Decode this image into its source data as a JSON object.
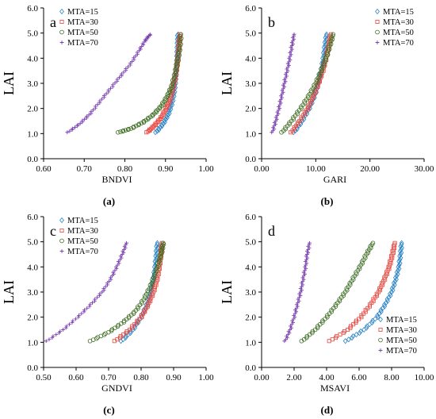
{
  "series_names": [
    "MTA=15",
    "MTA=30",
    "MTA=50",
    "MTA=70"
  ],
  "colors": {
    "MTA=15": "#2e86c8",
    "MTA=30": "#e8453c",
    "MTA=50": "#3a6b1f",
    "MTA=70": "#7a3fb0"
  },
  "markers": {
    "MTA=15": "diamond-open",
    "MTA=30": "square-open",
    "MTA=50": "circle-open",
    "MTA=70": "plus"
  },
  "chart_data": [
    {
      "type": "scatter",
      "panel_letter": "a",
      "caption": "(a)",
      "xlabel": "BNDVI",
      "ylabel": "LAI",
      "xlim": [
        0.6,
        1.0
      ],
      "ylim": [
        0,
        6
      ],
      "xticks": [
        "0.60",
        "0.70",
        "0.80",
        "0.90",
        "1.00"
      ],
      "yticks": [
        "0.0",
        "1.0",
        "2.0",
        "3.0",
        "4.0",
        "5.0",
        "6.0"
      ],
      "legend": "top-left",
      "series": [
        {
          "name": "MTA=15",
          "points": [
            [
              0.877,
              1.05
            ],
            [
              0.895,
              1.4
            ],
            [
              0.908,
              1.8
            ],
            [
              0.916,
              2.2
            ],
            [
              0.921,
              2.6
            ],
            [
              0.924,
              3.0
            ],
            [
              0.926,
              3.4
            ],
            [
              0.928,
              3.8
            ],
            [
              0.929,
              4.2
            ],
            [
              0.93,
              4.6
            ],
            [
              0.931,
              4.95
            ]
          ]
        },
        {
          "name": "MTA=30",
          "points": [
            [
              0.855,
              1.05
            ],
            [
              0.872,
              1.3
            ],
            [
              0.888,
              1.6
            ],
            [
              0.902,
              2.0
            ],
            [
              0.912,
              2.4
            ],
            [
              0.92,
              2.9
            ],
            [
              0.926,
              3.4
            ],
            [
              0.93,
              3.9
            ],
            [
              0.933,
              4.4
            ],
            [
              0.935,
              4.95
            ]
          ]
        },
        {
          "name": "MTA=50",
          "points": [
            [
              0.785,
              1.05
            ],
            [
              0.815,
              1.2
            ],
            [
              0.845,
              1.45
            ],
            [
              0.87,
              1.75
            ],
            [
              0.89,
              2.1
            ],
            [
              0.905,
              2.5
            ],
            [
              0.916,
              2.9
            ],
            [
              0.924,
              3.4
            ],
            [
              0.93,
              3.9
            ],
            [
              0.935,
              4.4
            ],
            [
              0.938,
              4.95
            ]
          ]
        },
        {
          "name": "MTA=70",
          "points": [
            [
              0.66,
              1.05
            ],
            [
              0.69,
              1.4
            ],
            [
              0.715,
              1.8
            ],
            [
              0.74,
              2.3
            ],
            [
              0.765,
              2.8
            ],
            [
              0.79,
              3.3
            ],
            [
              0.815,
              3.8
            ],
            [
              0.835,
              4.3
            ],
            [
              0.85,
              4.7
            ],
            [
              0.862,
              4.95
            ]
          ]
        }
      ]
    },
    {
      "type": "scatter",
      "panel_letter": "b",
      "caption": "(b)",
      "xlabel": "GARI",
      "ylabel": "LAI",
      "xlim": [
        0,
        30
      ],
      "ylim": [
        0,
        6
      ],
      "xticks": [
        "0.00",
        "10.00",
        "20.00",
        "30.00"
      ],
      "yticks": [
        "0.0",
        "1.0",
        "2.0",
        "3.0",
        "4.0",
        "5.0",
        "6.0"
      ],
      "legend": "top-right",
      "series": [
        {
          "name": "MTA=15",
          "points": [
            [
              6.0,
              1.05
            ],
            [
              7.5,
              1.5
            ],
            [
              8.8,
              2.0
            ],
            [
              9.8,
              2.5
            ],
            [
              10.5,
              3.0
            ],
            [
              11.0,
              3.5
            ],
            [
              11.4,
              4.0
            ],
            [
              11.7,
              4.5
            ],
            [
              12.0,
              4.95
            ]
          ]
        },
        {
          "name": "MTA=30",
          "points": [
            [
              5.5,
              1.05
            ],
            [
              7.0,
              1.5
            ],
            [
              8.5,
              2.0
            ],
            [
              9.6,
              2.5
            ],
            [
              10.5,
              3.0
            ],
            [
              11.3,
              3.5
            ],
            [
              11.9,
              4.0
            ],
            [
              12.4,
              4.5
            ],
            [
              12.8,
              4.95
            ]
          ]
        },
        {
          "name": "MTA=50",
          "points": [
            [
              3.8,
              1.05
            ],
            [
              5.5,
              1.5
            ],
            [
              7.2,
              2.0
            ],
            [
              8.7,
              2.5
            ],
            [
              10.0,
              3.0
            ],
            [
              11.0,
              3.5
            ],
            [
              11.9,
              4.0
            ],
            [
              12.6,
              4.5
            ],
            [
              13.2,
              4.95
            ]
          ]
        },
        {
          "name": "MTA=70",
          "points": [
            [
              2.0,
              1.05
            ],
            [
              2.6,
              1.5
            ],
            [
              3.2,
              2.0
            ],
            [
              3.7,
              2.5
            ],
            [
              4.2,
              3.0
            ],
            [
              4.7,
              3.5
            ],
            [
              5.2,
              4.0
            ],
            [
              5.6,
              4.5
            ],
            [
              6.0,
              4.95
            ]
          ]
        }
      ]
    },
    {
      "type": "scatter",
      "panel_letter": "c",
      "caption": "(c)",
      "xlabel": "GNDVI",
      "ylabel": "LAI",
      "xlim": [
        0.5,
        1.0
      ],
      "ylim": [
        0,
        6
      ],
      "xticks": [
        "0.50",
        "0.60",
        "0.70",
        "0.80",
        "0.90",
        "1.00"
      ],
      "yticks": [
        "0.0",
        "1.0",
        "2.0",
        "3.0",
        "4.0",
        "5.0",
        "6.0"
      ],
      "legend": "top-left",
      "series": [
        {
          "name": "MTA=15",
          "points": [
            [
              0.74,
              1.05
            ],
            [
              0.775,
              1.5
            ],
            [
              0.8,
              2.0
            ],
            [
              0.818,
              2.5
            ],
            [
              0.83,
              3.0
            ],
            [
              0.838,
              3.5
            ],
            [
              0.843,
              4.0
            ],
            [
              0.847,
              4.5
            ],
            [
              0.85,
              4.95
            ]
          ]
        },
        {
          "name": "MTA=30",
          "points": [
            [
              0.72,
              1.05
            ],
            [
              0.765,
              1.5
            ],
            [
              0.8,
              2.0
            ],
            [
              0.822,
              2.5
            ],
            [
              0.838,
              3.0
            ],
            [
              0.849,
              3.5
            ],
            [
              0.856,
              4.0
            ],
            [
              0.861,
              4.5
            ],
            [
              0.864,
              4.95
            ]
          ]
        },
        {
          "name": "MTA=50",
          "points": [
            [
              0.645,
              1.05
            ],
            [
              0.7,
              1.4
            ],
            [
              0.745,
              1.8
            ],
            [
              0.78,
              2.2
            ],
            [
              0.808,
              2.7
            ],
            [
              0.828,
              3.2
            ],
            [
              0.843,
              3.7
            ],
            [
              0.855,
              4.2
            ],
            [
              0.863,
              4.6
            ],
            [
              0.868,
              4.95
            ]
          ]
        },
        {
          "name": "MTA=70",
          "points": [
            [
              0.51,
              1.05
            ],
            [
              0.56,
              1.5
            ],
            [
              0.605,
              2.0
            ],
            [
              0.645,
              2.5
            ],
            [
              0.68,
              3.0
            ],
            [
              0.705,
              3.5
            ],
            [
              0.725,
              4.0
            ],
            [
              0.742,
              4.5
            ],
            [
              0.755,
              4.95
            ]
          ]
        }
      ]
    },
    {
      "type": "scatter",
      "panel_letter": "d",
      "caption": "(d)",
      "xlabel": "MSAVI",
      "ylabel": "LAI",
      "xlim": [
        0,
        10
      ],
      "ylim": [
        0,
        6
      ],
      "xticks": [
        "0.00",
        "2.00",
        "4.00",
        "6.00",
        "8.00",
        "10.00"
      ],
      "yticks": [
        "0.0",
        "1.0",
        "2.0",
        "3.0",
        "4.0",
        "5.0",
        "6.0"
      ],
      "legend": "bottom-right",
      "series": [
        {
          "name": "MTA=15",
          "points": [
            [
              5.2,
              1.05
            ],
            [
              6.3,
              1.5
            ],
            [
              7.1,
              2.0
            ],
            [
              7.6,
              2.5
            ],
            [
              8.0,
              3.0
            ],
            [
              8.25,
              3.5
            ],
            [
              8.45,
              4.0
            ],
            [
              8.55,
              4.5
            ],
            [
              8.62,
              4.95
            ]
          ]
        },
        {
          "name": "MTA=30",
          "points": [
            [
              4.2,
              1.05
            ],
            [
              5.3,
              1.5
            ],
            [
              6.1,
              2.0
            ],
            [
              6.7,
              2.5
            ],
            [
              7.2,
              3.0
            ],
            [
              7.55,
              3.5
            ],
            [
              7.85,
              4.0
            ],
            [
              8.05,
              4.5
            ],
            [
              8.2,
              4.95
            ]
          ]
        },
        {
          "name": "MTA=50",
          "points": [
            [
              2.5,
              1.05
            ],
            [
              3.3,
              1.5
            ],
            [
              4.0,
              2.0
            ],
            [
              4.6,
              2.5
            ],
            [
              5.15,
              3.0
            ],
            [
              5.6,
              3.5
            ],
            [
              6.05,
              4.0
            ],
            [
              6.45,
              4.5
            ],
            [
              6.85,
              4.95
            ]
          ]
        },
        {
          "name": "MTA=70",
          "points": [
            [
              1.45,
              1.05
            ],
            [
              1.75,
              1.5
            ],
            [
              2.0,
              2.0
            ],
            [
              2.2,
              2.5
            ],
            [
              2.4,
              3.0
            ],
            [
              2.55,
              3.5
            ],
            [
              2.7,
              4.0
            ],
            [
              2.8,
              4.5
            ],
            [
              2.95,
              4.95
            ]
          ]
        }
      ]
    }
  ]
}
